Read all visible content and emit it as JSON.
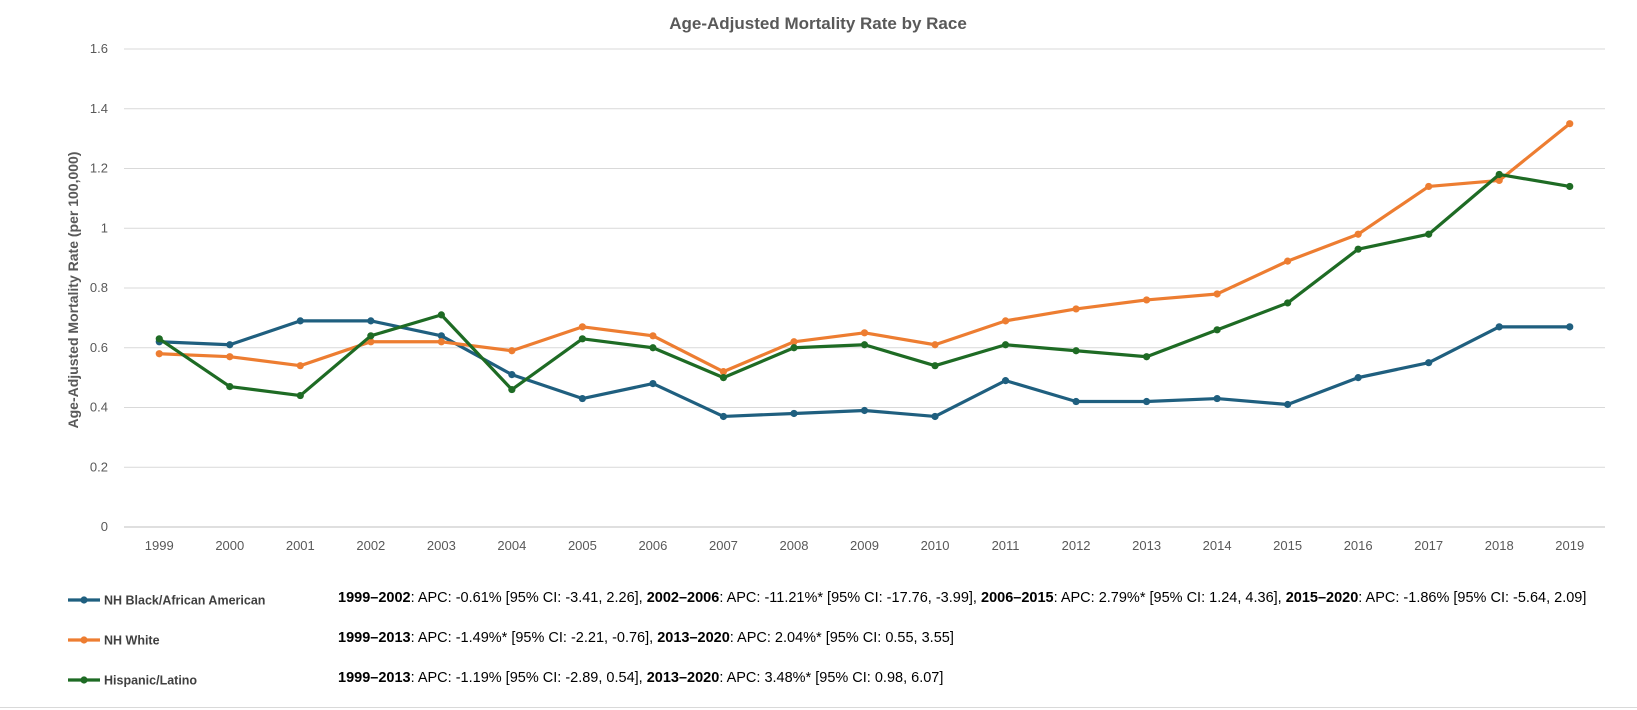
{
  "chart_data": {
    "type": "line",
    "title": "Age-Adjusted Mortality Rate by Race",
    "xlabel": "",
    "ylabel": "Age-Adjusted Mortality Rate (per 100,000)",
    "ylim": [
      0,
      1.6
    ],
    "yticks": [
      "0",
      "0.2",
      "0.4",
      "0.6",
      "0.8",
      "1",
      "1.2",
      "1.4",
      "1.6"
    ],
    "ytick_values": [
      0,
      0.2,
      0.4,
      0.6,
      0.8,
      1,
      1.2,
      1.4,
      1.6
    ],
    "grid": true,
    "legend_position": "bottom-left",
    "categories": [
      "1999",
      "2000",
      "2001",
      "2002",
      "2003",
      "2004",
      "2005",
      "2006",
      "2007",
      "2008",
      "2009",
      "2010",
      "2011",
      "2012",
      "2013",
      "2014",
      "2015",
      "2016",
      "2017",
      "2018",
      "2019"
    ],
    "series": [
      {
        "name": "NH Black/African American",
        "color": "#1f5f7f",
        "values": [
          0.62,
          0.61,
          0.69,
          0.69,
          0.64,
          0.51,
          0.43,
          0.48,
          0.37,
          0.38,
          0.39,
          0.37,
          0.49,
          0.42,
          0.42,
          0.43,
          0.41,
          0.5,
          0.55,
          0.67,
          0.67
        ],
        "annotation": [
          {
            "period": "1999–2002",
            "text": ": APC: -0.61% [95% CI: -3.41, 2.26], "
          },
          {
            "period": "2002–2006",
            "text": ": APC: -11.21%* [95% CI: -17.76, -3.99], "
          },
          {
            "period": "2006–2015",
            "text": ": APC: 2.79%* [95% CI: 1.24, 4.36], "
          },
          {
            "period": "2015–2020",
            "text": ": APC: -1.86% [95% CI: -5.64, 2.09]"
          }
        ]
      },
      {
        "name": "NH White",
        "color": "#ed7d31",
        "values": [
          0.58,
          0.57,
          0.54,
          0.62,
          0.62,
          0.59,
          0.67,
          0.64,
          0.52,
          0.62,
          0.65,
          0.61,
          0.69,
          0.73,
          0.76,
          0.78,
          0.89,
          0.98,
          1.14,
          1.16,
          1.35
        ],
        "annotation": [
          {
            "period": "1999–2013",
            "text": ": APC: -1.49%* [95% CI: -2.21, -0.76], "
          },
          {
            "period": "2013–2020",
            "text": ": APC: 2.04%* [95% CI: 0.55, 3.55]"
          }
        ]
      },
      {
        "name": "Hispanic/Latino",
        "color": "#1e6b24",
        "values": [
          0.63,
          0.47,
          0.44,
          0.64,
          0.71,
          0.46,
          0.63,
          0.6,
          0.5,
          0.6,
          0.61,
          0.54,
          0.61,
          0.59,
          0.57,
          0.66,
          0.75,
          0.93,
          0.98,
          1.18,
          1.14
        ],
        "annotation": [
          {
            "period": "1999–2013",
            "text": ": APC: -1.19% [95% CI: -2.89, 0.54], "
          },
          {
            "period": "2013–2020",
            "text": ": APC: 3.48%* [95% CI: 0.98, 6.07]"
          }
        ]
      }
    ]
  }
}
